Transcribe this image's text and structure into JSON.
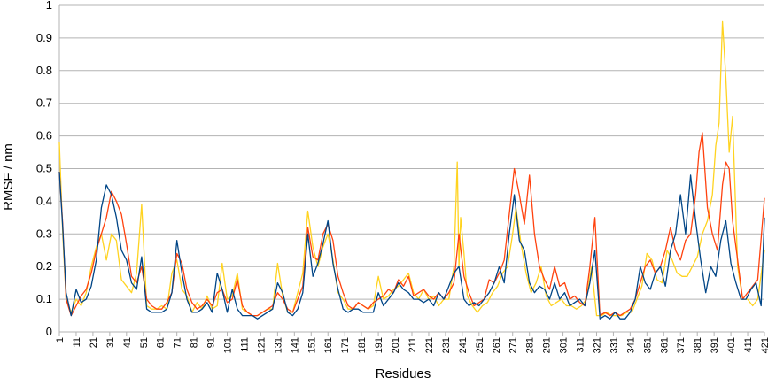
{
  "chart_data": {
    "type": "line",
    "xlabel": "Residues",
    "ylabel": "RMSF / nm",
    "xlim": [
      1,
      421
    ],
    "ylim": [
      0,
      1
    ],
    "ytick_step": 0.1,
    "xtick_labels": [
      "1",
      "11",
      "21",
      "31",
      "41",
      "51",
      "61",
      "71",
      "81",
      "91",
      "101",
      "111",
      "121",
      "131",
      "141",
      "151",
      "161",
      "171",
      "181",
      "191",
      "201",
      "211",
      "221",
      "231",
      "241",
      "251",
      "261",
      "271",
      "281",
      "291",
      "301",
      "311",
      "321",
      "331",
      "341",
      "351",
      "361",
      "371",
      "381",
      "391",
      "401",
      "411",
      "421"
    ],
    "grid": "horizontal",
    "legend": "none",
    "series": [
      {
        "color": "#ffd320",
        "x": [
          1,
          3,
          5,
          8,
          11,
          14,
          17,
          20,
          23,
          26,
          29,
          32,
          35,
          38,
          41,
          44,
          47,
          50,
          53,
          56,
          59,
          62,
          65,
          68,
          71,
          74,
          77,
          80,
          83,
          86,
          89,
          92,
          95,
          98,
          101,
          104,
          107,
          110,
          113,
          116,
          119,
          122,
          125,
          128,
          131,
          134,
          137,
          140,
          143,
          146,
          149,
          152,
          155,
          158,
          161,
          164,
          167,
          170,
          173,
          176,
          179,
          182,
          185,
          188,
          191,
          194,
          197,
          200,
          203,
          206,
          209,
          212,
          215,
          218,
          221,
          224,
          227,
          230,
          233,
          236,
          238,
          239,
          240,
          242,
          244,
          247,
          250,
          253,
          256,
          259,
          262,
          265,
          268,
          271,
          273,
          276,
          279,
          282,
          285,
          288,
          291,
          294,
          297,
          300,
          303,
          306,
          309,
          312,
          315,
          318,
          321,
          324,
          327,
          330,
          333,
          336,
          339,
          342,
          345,
          348,
          351,
          354,
          357,
          360,
          363,
          366,
          369,
          372,
          375,
          378,
          381,
          384,
          387,
          390,
          392,
          394,
          396,
          398,
          400,
          402,
          405,
          408,
          411,
          414,
          417,
          421
        ],
        "y": [
          0.58,
          0.3,
          0.1,
          0.06,
          0.1,
          0.08,
          0.12,
          0.2,
          0.26,
          0.3,
          0.22,
          0.3,
          0.28,
          0.16,
          0.14,
          0.12,
          0.18,
          0.39,
          0.08,
          0.07,
          0.07,
          0.08,
          0.07,
          0.18,
          0.22,
          0.13,
          0.11,
          0.06,
          0.09,
          0.07,
          0.11,
          0.07,
          0.08,
          0.21,
          0.1,
          0.11,
          0.18,
          0.07,
          0.06,
          0.05,
          0.05,
          0.06,
          0.07,
          0.07,
          0.21,
          0.11,
          0.06,
          0.06,
          0.12,
          0.18,
          0.37,
          0.26,
          0.2,
          0.26,
          0.3,
          0.22,
          0.12,
          0.1,
          0.07,
          0.07,
          0.09,
          0.08,
          0.07,
          0.08,
          0.17,
          0.1,
          0.11,
          0.13,
          0.14,
          0.16,
          0.18,
          0.12,
          0.1,
          0.13,
          0.1,
          0.11,
          0.08,
          0.1,
          0.1,
          0.2,
          0.52,
          0.2,
          0.35,
          0.24,
          0.11,
          0.08,
          0.06,
          0.08,
          0.09,
          0.12,
          0.14,
          0.18,
          0.2,
          0.3,
          0.38,
          0.27,
          0.18,
          0.12,
          0.15,
          0.2,
          0.11,
          0.08,
          0.09,
          0.1,
          0.08,
          0.08,
          0.07,
          0.08,
          0.1,
          0.2,
          0.05,
          0.05,
          0.06,
          0.05,
          0.05,
          0.05,
          0.06,
          0.06,
          0.1,
          0.14,
          0.24,
          0.22,
          0.16,
          0.15,
          0.25,
          0.22,
          0.18,
          0.17,
          0.17,
          0.2,
          0.23,
          0.3,
          0.34,
          0.42,
          0.57,
          0.64,
          0.95,
          0.78,
          0.55,
          0.66,
          0.2,
          0.1,
          0.1,
          0.08,
          0.1,
          0.25
        ]
      },
      {
        "color": "#ff420e",
        "x": [
          1,
          3,
          5,
          8,
          11,
          14,
          17,
          20,
          23,
          26,
          29,
          32,
          35,
          38,
          41,
          44,
          47,
          50,
          53,
          56,
          59,
          62,
          65,
          68,
          71,
          74,
          77,
          80,
          83,
          86,
          89,
          92,
          95,
          98,
          101,
          104,
          107,
          110,
          113,
          116,
          119,
          122,
          125,
          128,
          131,
          134,
          137,
          140,
          143,
          146,
          149,
          152,
          155,
          158,
          161,
          164,
          167,
          170,
          173,
          176,
          179,
          182,
          185,
          188,
          191,
          194,
          197,
          200,
          203,
          206,
          209,
          212,
          215,
          218,
          221,
          224,
          227,
          230,
          233,
          236,
          239,
          242,
          245,
          248,
          251,
          254,
          257,
          260,
          263,
          266,
          269,
          272,
          275,
          278,
          281,
          284,
          287,
          290,
          293,
          296,
          299,
          302,
          305,
          308,
          311,
          314,
          317,
          320,
          323,
          326,
          329,
          332,
          335,
          338,
          341,
          344,
          347,
          350,
          353,
          356,
          359,
          362,
          365,
          368,
          371,
          374,
          377,
          380,
          382,
          384,
          387,
          390,
          393,
          396,
          398,
          400,
          402,
          405,
          408,
          411,
          414,
          417,
          421
        ],
        "y": [
          0.49,
          0.33,
          0.1,
          0.05,
          0.08,
          0.11,
          0.13,
          0.18,
          0.25,
          0.3,
          0.35,
          0.43,
          0.4,
          0.36,
          0.27,
          0.17,
          0.15,
          0.2,
          0.1,
          0.08,
          0.07,
          0.07,
          0.09,
          0.12,
          0.24,
          0.21,
          0.13,
          0.09,
          0.07,
          0.08,
          0.1,
          0.08,
          0.12,
          0.13,
          0.09,
          0.1,
          0.16,
          0.08,
          0.06,
          0.05,
          0.05,
          0.06,
          0.07,
          0.08,
          0.12,
          0.1,
          0.07,
          0.06,
          0.1,
          0.14,
          0.32,
          0.23,
          0.22,
          0.3,
          0.33,
          0.28,
          0.17,
          0.12,
          0.08,
          0.07,
          0.09,
          0.08,
          0.07,
          0.09,
          0.1,
          0.11,
          0.13,
          0.12,
          0.16,
          0.14,
          0.17,
          0.11,
          0.12,
          0.13,
          0.11,
          0.1,
          0.12,
          0.1,
          0.12,
          0.15,
          0.3,
          0.17,
          0.12,
          0.08,
          0.09,
          0.1,
          0.16,
          0.15,
          0.18,
          0.22,
          0.36,
          0.5,
          0.42,
          0.33,
          0.48,
          0.3,
          0.2,
          0.16,
          0.13,
          0.2,
          0.14,
          0.15,
          0.1,
          0.11,
          0.09,
          0.08,
          0.2,
          0.35,
          0.05,
          0.06,
          0.05,
          0.06,
          0.05,
          0.06,
          0.07,
          0.1,
          0.15,
          0.2,
          0.22,
          0.18,
          0.2,
          0.25,
          0.32,
          0.25,
          0.22,
          0.28,
          0.3,
          0.42,
          0.55,
          0.61,
          0.38,
          0.3,
          0.25,
          0.45,
          0.52,
          0.5,
          0.34,
          0.22,
          0.1,
          0.12,
          0.14,
          0.16,
          0.41
        ]
      },
      {
        "color": "#004586",
        "x": [
          1,
          3,
          5,
          8,
          11,
          14,
          17,
          20,
          23,
          26,
          29,
          32,
          35,
          38,
          41,
          44,
          47,
          50,
          53,
          56,
          59,
          62,
          65,
          68,
          71,
          74,
          77,
          80,
          83,
          86,
          89,
          92,
          95,
          98,
          101,
          104,
          107,
          110,
          113,
          116,
          119,
          122,
          125,
          128,
          131,
          134,
          137,
          140,
          143,
          146,
          149,
          152,
          155,
          158,
          161,
          164,
          167,
          170,
          173,
          176,
          179,
          182,
          185,
          188,
          191,
          194,
          197,
          200,
          203,
          206,
          209,
          212,
          215,
          218,
          221,
          224,
          227,
          230,
          233,
          236,
          239,
          242,
          245,
          248,
          251,
          254,
          257,
          260,
          263,
          266,
          269,
          272,
          275,
          278,
          281,
          284,
          287,
          290,
          293,
          296,
          299,
          302,
          305,
          308,
          311,
          314,
          317,
          320,
          323,
          326,
          329,
          332,
          335,
          338,
          341,
          344,
          347,
          350,
          353,
          356,
          359,
          362,
          365,
          368,
          371,
          374,
          377,
          380,
          383,
          386,
          389,
          392,
          395,
          398,
          401,
          404,
          407,
          410,
          413,
          416,
          419,
          421
        ],
        "y": [
          0.49,
          0.32,
          0.12,
          0.05,
          0.13,
          0.09,
          0.1,
          0.14,
          0.22,
          0.38,
          0.45,
          0.42,
          0.35,
          0.25,
          0.22,
          0.15,
          0.13,
          0.23,
          0.07,
          0.06,
          0.06,
          0.06,
          0.07,
          0.12,
          0.28,
          0.18,
          0.1,
          0.06,
          0.06,
          0.07,
          0.09,
          0.06,
          0.18,
          0.13,
          0.06,
          0.13,
          0.07,
          0.05,
          0.05,
          0.05,
          0.04,
          0.05,
          0.06,
          0.07,
          0.15,
          0.12,
          0.06,
          0.05,
          0.07,
          0.12,
          0.3,
          0.17,
          0.21,
          0.27,
          0.34,
          0.21,
          0.13,
          0.07,
          0.06,
          0.07,
          0.07,
          0.06,
          0.06,
          0.06,
          0.12,
          0.08,
          0.1,
          0.12,
          0.15,
          0.13,
          0.12,
          0.1,
          0.1,
          0.09,
          0.1,
          0.08,
          0.12,
          0.1,
          0.14,
          0.18,
          0.2,
          0.1,
          0.08,
          0.09,
          0.08,
          0.1,
          0.12,
          0.15,
          0.2,
          0.15,
          0.3,
          0.42,
          0.28,
          0.25,
          0.15,
          0.12,
          0.14,
          0.13,
          0.1,
          0.15,
          0.1,
          0.12,
          0.08,
          0.09,
          0.1,
          0.08,
          0.15,
          0.25,
          0.04,
          0.05,
          0.04,
          0.06,
          0.04,
          0.04,
          0.06,
          0.1,
          0.2,
          0.15,
          0.13,
          0.18,
          0.2,
          0.14,
          0.25,
          0.3,
          0.42,
          0.3,
          0.48,
          0.34,
          0.22,
          0.12,
          0.2,
          0.17,
          0.28,
          0.34,
          0.21,
          0.15,
          0.1,
          0.1,
          0.13,
          0.15,
          0.08,
          0.35
        ]
      }
    ]
  }
}
